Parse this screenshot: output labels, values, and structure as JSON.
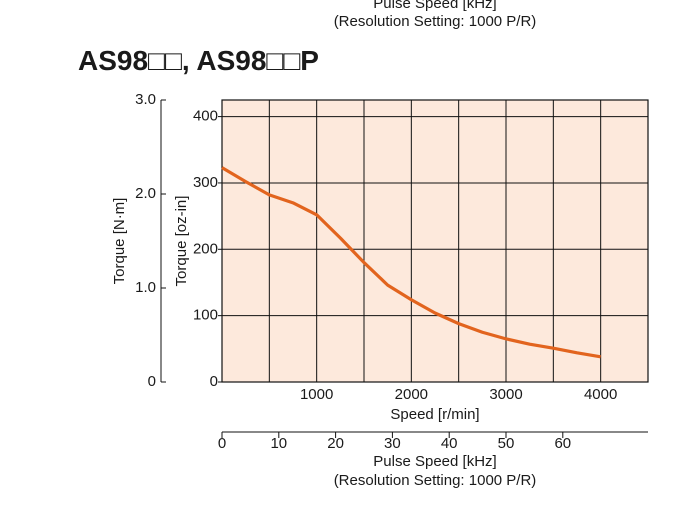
{
  "header_labels": [
    "Pulse Speed [kHz]",
    "(Resolution Setting: 1000 P/R)"
  ],
  "chart_data": {
    "type": "line",
    "title": "AS98□□, AS98□□P",
    "x": [
      0,
      250,
      500,
      750,
      1000,
      1250,
      1500,
      1750,
      2000,
      2250,
      2500,
      2750,
      3000,
      3250,
      3500,
      3750,
      4000
    ],
    "series": [
      {
        "color": "#e2641e",
        "axis": "y2",
        "values": [
          323,
          302,
          282,
          270,
          252,
          217,
          180,
          146,
          124,
          104,
          88,
          75,
          65,
          57,
          51,
          44,
          38
        ]
      }
    ],
    "xlabel": "Speed [r/min]",
    "xlim": [
      0,
      4500
    ],
    "xticks": [
      1000,
      2000,
      3000,
      4000
    ],
    "xgrid": [
      500,
      1000,
      1500,
      2000,
      2500,
      3000,
      3500,
      4000
    ],
    "ylabel": "Torque [N·m]",
    "ylim": [
      0,
      3
    ],
    "yticks": [
      0,
      {
        "value": 1,
        "label": "1.0"
      },
      {
        "value": 2,
        "label": "2.0"
      },
      {
        "value": 3,
        "label": "3.0"
      }
    ],
    "y2label": "Torque [oz-in]",
    "y2lim": [
      0,
      425
    ],
    "y2ticks": [
      0,
      100,
      200,
      300,
      400
    ],
    "x2label": "Pulse Speed [kHz]",
    "x2note": "(Resolution Setting: 1000 P/R)",
    "x2lim": [
      0,
      75
    ],
    "x2ticks": [
      0,
      10,
      20,
      30,
      40,
      50,
      60
    ],
    "plot_color": "#fde9dc",
    "grid": true
  }
}
